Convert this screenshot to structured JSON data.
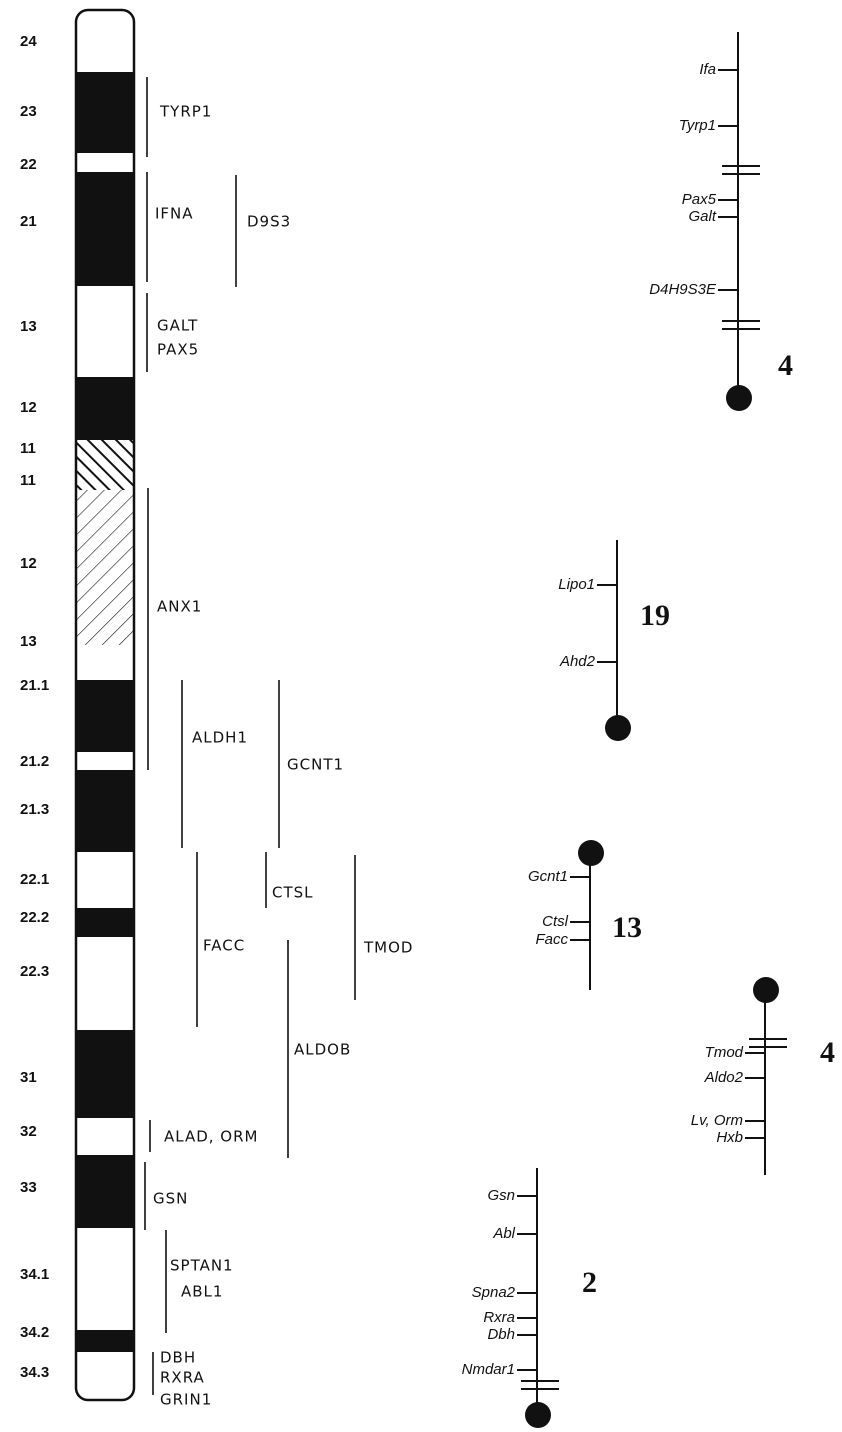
{
  "ideogram": {
    "bands": [
      "24",
      "23",
      "22",
      "21",
      "13",
      "12",
      "11",
      "11",
      "12",
      "13",
      "21.1",
      "21.2",
      "21.3",
      "22.1",
      "22.2",
      "22.3",
      "31",
      "32",
      "33",
      "34.1",
      "34.2",
      "34.3"
    ]
  },
  "human_genes": [
    "TYRP1",
    "IFNA",
    "D9S3",
    "GALT",
    "PAX5",
    "ANX1",
    "ALDH1",
    "GCNT1",
    "CTSL",
    "FACC",
    "TMOD",
    "ALDOB",
    "ALAD, ORM",
    "GSN",
    "SPTAN1",
    "ABL1",
    "DBH",
    "RXRA",
    "GRIN1"
  ],
  "mouse_maps": [
    {
      "chromosome": "4",
      "genes": [
        "Ifa",
        "Tyrp1",
        "Pax5",
        "Galt",
        "D4H9S3E"
      ]
    },
    {
      "chromosome": "19",
      "genes": [
        "Lipo1",
        "Ahd2"
      ]
    },
    {
      "chromosome": "13",
      "genes": [
        "Gcnt1",
        "Ctsl",
        "Facc"
      ]
    },
    {
      "chromosome": "4",
      "genes": [
        "Tmod",
        "Aldo2",
        "Lv, Orm",
        "Hxb"
      ]
    },
    {
      "chromosome": "2",
      "genes": [
        "Gsn",
        "Abl",
        "Spna2",
        "Rxra",
        "Dbh",
        "Nmdar1"
      ]
    }
  ]
}
